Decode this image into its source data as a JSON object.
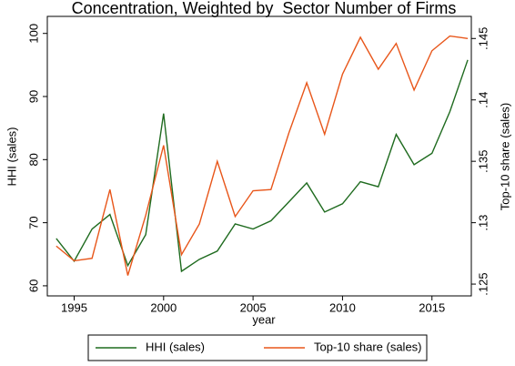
{
  "chart_data": {
    "type": "line",
    "title": "Concentration, Weighted by  Sector Number of Firms",
    "x_label": "year",
    "y_label": "HHI (sales)",
    "y2_label": "Top-10 share (sales)",
    "x": [
      1994,
      1995,
      1996,
      1997,
      1998,
      1999,
      2000,
      2001,
      2002,
      2003,
      2004,
      2005,
      2006,
      2007,
      2008,
      2009,
      2010,
      2011,
      2012,
      2013,
      2014,
      2015,
      2016,
      2017
    ],
    "series": [
      {
        "name": "HHI (sales)",
        "color": "#1f6b1f",
        "axis": "y",
        "values": [
          67.5,
          63.9,
          69,
          71.3,
          63.2,
          68.1,
          87.3,
          62.3,
          64.2,
          65.5,
          69.8,
          69,
          70.3,
          73.3,
          76.3,
          71.7,
          73,
          76.5,
          75.7,
          84,
          79.2,
          81,
          87.6,
          95.8
        ]
      },
      {
        "name": "Top-10 share (sales)",
        "color": "#e8561a",
        "axis": "y2",
        "values": [
          0.1281,
          0.1269,
          0.1271,
          0.1327,
          0.1257,
          0.1306,
          0.1363,
          0.1274,
          0.1299,
          0.135,
          0.1305,
          0.1326,
          0.1327,
          0.1373,
          0.1414,
          0.1372,
          0.1421,
          0.1451,
          0.1425,
          0.1446,
          0.1408,
          0.144,
          0.1452,
          0.145
        ]
      }
    ],
    "xlim": [
      1993.5,
      2017.2
    ],
    "xticks": [
      1995,
      2000,
      2005,
      2010,
      2015
    ],
    "ylim": [
      58.4,
      102.7
    ],
    "yticks": [
      60,
      70,
      80,
      90,
      100
    ],
    "y2lim": [
      0.12404,
      0.1468
    ],
    "y2ticks": [
      {
        "value": 0.125,
        "label": ".125"
      },
      {
        "value": 0.13,
        "label": ".13"
      },
      {
        "value": 0.135,
        "label": ".135"
      },
      {
        "value": 0.14,
        "label": ".14"
      },
      {
        "value": 0.145,
        "label": ".145"
      }
    ],
    "grid": false,
    "legend": "bottom"
  }
}
